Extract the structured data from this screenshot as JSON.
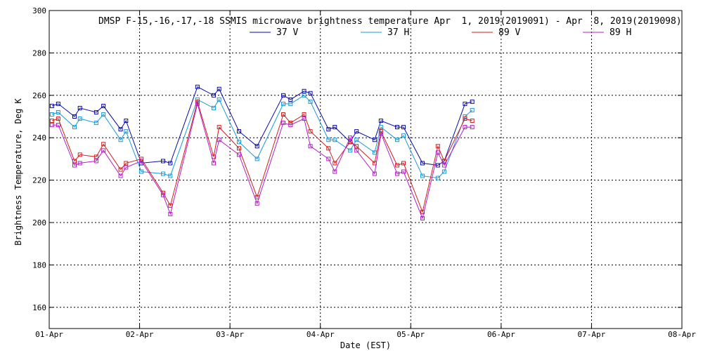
{
  "chart_data": {
    "type": "line",
    "title": "DMSP F-15,-16,-17,-18 SSMIS microwave brightness temperature Apr  1, 2019(2019091) - Apr  8, 2019(2019098)",
    "xlabel": "Date (EST)",
    "ylabel": "Brightness Temperature, Deg K",
    "ylim": [
      150,
      300
    ],
    "xlim": [
      0,
      7
    ],
    "x_ticks": [
      0,
      1,
      2,
      3,
      4,
      5,
      6,
      7
    ],
    "x_tick_labels": [
      "01-Apr",
      "02-Apr",
      "03-Apr",
      "04-Apr",
      "05-Apr",
      "06-Apr",
      "07-Apr",
      "08-Apr"
    ],
    "y_ticks": [
      160,
      180,
      200,
      220,
      240,
      260,
      280,
      300
    ],
    "y_tick_labels": [
      "160",
      "180",
      "200",
      "220",
      "240",
      "260",
      "280",
      "300"
    ],
    "grid": true,
    "legend_position": "top",
    "series": [
      {
        "name": "37 V",
        "color": "#0a0aa8",
        "points": [
          [
            0.03,
            255
          ],
          [
            0.1,
            256
          ],
          [
            0.28,
            250
          ],
          [
            0.34,
            254
          ],
          [
            0.52,
            252
          ],
          [
            0.6,
            255
          ],
          [
            0.79,
            244
          ],
          [
            0.85,
            248
          ],
          [
            1.02,
            228
          ],
          [
            1.26,
            229
          ],
          [
            1.34,
            228
          ],
          [
            1.64,
            264
          ],
          [
            1.82,
            260
          ],
          [
            1.88,
            263
          ],
          [
            2.1,
            243
          ],
          [
            2.3,
            236
          ],
          [
            2.59,
            260
          ],
          [
            2.67,
            258
          ],
          [
            2.82,
            262
          ],
          [
            2.89,
            261
          ],
          [
            3.09,
            244
          ],
          [
            3.16,
            245
          ],
          [
            3.33,
            238
          ],
          [
            3.4,
            243
          ],
          [
            3.6,
            239
          ],
          [
            3.67,
            248
          ],
          [
            3.85,
            245
          ],
          [
            3.92,
            245
          ],
          [
            4.13,
            228
          ],
          [
            4.3,
            227
          ],
          [
            4.37,
            229
          ],
          [
            4.6,
            256
          ],
          [
            4.68,
            257
          ]
        ]
      },
      {
        "name": "37 H",
        "color": "#1a9ad8",
        "points": [
          [
            0.03,
            251
          ],
          [
            0.1,
            252
          ],
          [
            0.28,
            245
          ],
          [
            0.34,
            249
          ],
          [
            0.52,
            247
          ],
          [
            0.6,
            251
          ],
          [
            0.79,
            239
          ],
          [
            0.85,
            243
          ],
          [
            1.02,
            224
          ],
          [
            1.26,
            223
          ],
          [
            1.34,
            222
          ],
          [
            1.64,
            258
          ],
          [
            1.82,
            254
          ],
          [
            1.88,
            258
          ],
          [
            2.1,
            238
          ],
          [
            2.3,
            230
          ],
          [
            2.59,
            256
          ],
          [
            2.67,
            256
          ],
          [
            2.82,
            260
          ],
          [
            2.89,
            257
          ],
          [
            3.09,
            239
          ],
          [
            3.16,
            239
          ],
          [
            3.33,
            234
          ],
          [
            3.4,
            239
          ],
          [
            3.6,
            233
          ],
          [
            3.67,
            245
          ],
          [
            3.85,
            239
          ],
          [
            3.92,
            241
          ],
          [
            4.13,
            222
          ],
          [
            4.3,
            221
          ],
          [
            4.37,
            224
          ],
          [
            4.6,
            250
          ],
          [
            4.68,
            253
          ]
        ]
      },
      {
        "name": "89 V",
        "color": "#d21e1e",
        "points": [
          [
            0.03,
            248
          ],
          [
            0.1,
            249
          ],
          [
            0.28,
            229
          ],
          [
            0.34,
            232
          ],
          [
            0.52,
            231
          ],
          [
            0.6,
            237
          ],
          [
            0.79,
            225
          ],
          [
            0.85,
            228
          ],
          [
            1.02,
            230
          ],
          [
            1.26,
            214
          ],
          [
            1.34,
            208
          ],
          [
            1.64,
            257
          ],
          [
            1.82,
            231
          ],
          [
            1.88,
            245
          ],
          [
            2.1,
            235
          ],
          [
            2.3,
            212
          ],
          [
            2.59,
            251
          ],
          [
            2.67,
            247
          ],
          [
            2.82,
            251
          ],
          [
            2.89,
            243
          ],
          [
            3.09,
            235
          ],
          [
            3.16,
            228
          ],
          [
            3.33,
            238
          ],
          [
            3.4,
            236
          ],
          [
            3.6,
            228
          ],
          [
            3.67,
            243
          ],
          [
            3.85,
            227
          ],
          [
            3.92,
            228
          ],
          [
            4.13,
            205
          ],
          [
            4.3,
            236
          ],
          [
            4.37,
            229
          ],
          [
            4.6,
            249
          ],
          [
            4.68,
            248
          ]
        ]
      },
      {
        "name": "89 H",
        "color": "#b41ec8",
        "points": [
          [
            0.03,
            246
          ],
          [
            0.1,
            246
          ],
          [
            0.28,
            227
          ],
          [
            0.34,
            228
          ],
          [
            0.52,
            229
          ],
          [
            0.6,
            234
          ],
          [
            0.79,
            222
          ],
          [
            0.85,
            226
          ],
          [
            1.02,
            229
          ],
          [
            1.26,
            213
          ],
          [
            1.34,
            204
          ],
          [
            1.64,
            256
          ],
          [
            1.82,
            228
          ],
          [
            1.88,
            239
          ],
          [
            2.1,
            232
          ],
          [
            2.3,
            209
          ],
          [
            2.59,
            247
          ],
          [
            2.67,
            246
          ],
          [
            2.82,
            249
          ],
          [
            2.89,
            236
          ],
          [
            3.09,
            230
          ],
          [
            3.16,
            224
          ],
          [
            3.33,
            240
          ],
          [
            3.4,
            234
          ],
          [
            3.6,
            223
          ],
          [
            3.67,
            242
          ],
          [
            3.85,
            223
          ],
          [
            3.92,
            224
          ],
          [
            4.13,
            202
          ],
          [
            4.3,
            233
          ],
          [
            4.37,
            227
          ],
          [
            4.6,
            245
          ],
          [
            4.68,
            245
          ]
        ]
      }
    ]
  }
}
